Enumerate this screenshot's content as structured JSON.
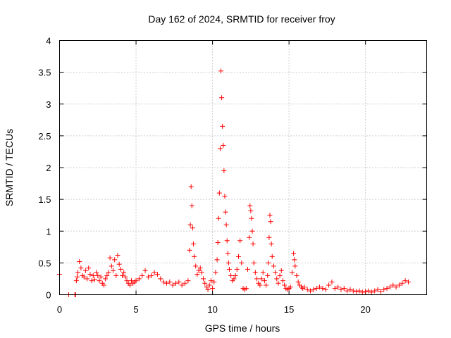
{
  "chart_data": {
    "type": "scatter",
    "title": "Day 162 of 2024, SRMTID for receiver froy",
    "xlabel": "GPS time / hours",
    "ylabel": "SRMTID / TECUs",
    "xlim": [
      0,
      24
    ],
    "ylim": [
      0,
      4
    ],
    "x_ticks": [
      "0",
      "5",
      "10",
      "15",
      "20"
    ],
    "x_tick_values": [
      0,
      5,
      10,
      15,
      20
    ],
    "y_ticks": [
      "0",
      "0.5",
      "1",
      "1.5",
      "2",
      "2.5",
      "3",
      "3.5",
      "4"
    ],
    "y_tick_values": [
      0,
      0.5,
      1,
      1.5,
      2,
      2.5,
      3,
      3.5,
      4
    ],
    "grid": true,
    "marker": "plus",
    "series": [
      {
        "name": "SRMTID",
        "color": "#ff0000",
        "x": [
          0.0,
          0.6,
          1.0,
          1.05,
          1.1,
          1.15,
          1.2,
          1.3,
          1.4,
          1.5,
          1.6,
          1.7,
          1.8,
          1.9,
          2.0,
          2.1,
          2.2,
          2.3,
          2.4,
          2.5,
          2.6,
          2.7,
          2.8,
          2.9,
          3.0,
          3.1,
          3.2,
          3.3,
          3.4,
          3.5,
          3.6,
          3.7,
          3.8,
          3.9,
          4.0,
          4.1,
          4.2,
          4.3,
          4.4,
          4.5,
          4.6,
          4.7,
          4.8,
          4.9,
          5.0,
          5.2,
          5.4,
          5.6,
          5.8,
          6.0,
          6.2,
          6.4,
          6.6,
          6.8,
          7.0,
          7.2,
          7.4,
          7.6,
          7.8,
          8.0,
          8.2,
          8.4,
          8.5,
          8.55,
          8.6,
          8.65,
          8.7,
          8.75,
          8.8,
          8.9,
          9.0,
          9.1,
          9.2,
          9.3,
          9.4,
          9.5,
          9.6,
          9.7,
          9.8,
          9.9,
          10.0,
          10.1,
          10.2,
          10.3,
          10.35,
          10.4,
          10.45,
          10.5,
          10.55,
          10.6,
          10.65,
          10.7,
          10.75,
          10.8,
          10.85,
          10.9,
          10.95,
          11.0,
          11.05,
          11.1,
          11.2,
          11.3,
          11.4,
          11.5,
          11.6,
          11.7,
          11.8,
          11.9,
          12.0,
          12.1,
          12.2,
          12.3,
          12.4,
          12.45,
          12.5,
          12.55,
          12.6,
          12.65,
          12.7,
          12.8,
          12.9,
          13.0,
          13.1,
          13.2,
          13.3,
          13.4,
          13.5,
          13.6,
          13.65,
          13.7,
          13.75,
          13.8,
          13.85,
          13.9,
          14.0,
          14.1,
          14.2,
          14.3,
          14.4,
          14.5,
          14.6,
          14.7,
          14.8,
          14.9,
          15.0,
          15.1,
          15.2,
          15.3,
          15.35,
          15.4,
          15.5,
          15.6,
          15.7,
          15.8,
          15.9,
          16.0,
          16.2,
          16.4,
          16.6,
          16.8,
          17.0,
          17.2,
          17.4,
          17.6,
          17.8,
          18.0,
          18.2,
          18.4,
          18.6,
          18.8,
          19.0,
          19.2,
          19.4,
          19.6,
          19.8,
          20.0,
          20.2,
          20.4,
          20.6,
          20.8,
          21.0,
          21.2,
          21.4,
          21.6,
          21.8,
          22.0,
          22.2,
          22.4,
          22.6,
          22.8
        ],
        "y": [
          0.32,
          0.0,
          0.0,
          0.0,
          0.22,
          0.28,
          0.35,
          0.52,
          0.42,
          0.3,
          0.28,
          0.38,
          0.25,
          0.42,
          0.32,
          0.22,
          0.3,
          0.24,
          0.35,
          0.3,
          0.22,
          0.28,
          0.18,
          0.15,
          0.25,
          0.3,
          0.35,
          0.58,
          0.45,
          0.38,
          0.55,
          0.3,
          0.62,
          0.48,
          0.4,
          0.3,
          0.35,
          0.28,
          0.22,
          0.18,
          0.15,
          0.22,
          0.18,
          0.2,
          0.22,
          0.25,
          0.3,
          0.38,
          0.28,
          0.3,
          0.35,
          0.32,
          0.25,
          0.2,
          0.18,
          0.2,
          0.15,
          0.18,
          0.2,
          0.15,
          0.18,
          0.22,
          0.7,
          1.1,
          1.7,
          1.4,
          1.05,
          0.8,
          0.6,
          0.45,
          0.32,
          0.38,
          0.42,
          0.35,
          0.25,
          0.18,
          0.12,
          0.08,
          0.15,
          0.22,
          0.1,
          0.2,
          0.35,
          0.55,
          0.82,
          1.2,
          1.6,
          2.3,
          3.52,
          3.1,
          2.65,
          2.35,
          1.95,
          1.55,
          1.3,
          1.1,
          0.85,
          0.65,
          0.5,
          0.4,
          0.3,
          0.22,
          0.25,
          0.3,
          0.4,
          0.6,
          0.85,
          0.5,
          0.1,
          0.08,
          0.1,
          0.4,
          0.9,
          1.4,
          1.32,
          1.2,
          1.0,
          0.8,
          0.5,
          0.35,
          0.25,
          0.18,
          0.15,
          0.25,
          0.35,
          0.22,
          0.15,
          0.3,
          0.5,
          0.9,
          1.25,
          1.15,
          0.8,
          0.6,
          0.45,
          0.35,
          0.25,
          0.18,
          0.3,
          0.38,
          0.22,
          0.15,
          0.1,
          0.08,
          0.1,
          0.12,
          0.35,
          0.65,
          0.55,
          0.45,
          0.3,
          0.2,
          0.15,
          0.12,
          0.1,
          0.12,
          0.08,
          0.06,
          0.08,
          0.1,
          0.12,
          0.1,
          0.08,
          0.15,
          0.2,
          0.1,
          0.12,
          0.08,
          0.1,
          0.06,
          0.08,
          0.06,
          0.05,
          0.06,
          0.04,
          0.05,
          0.06,
          0.04,
          0.06,
          0.08,
          0.05,
          0.08,
          0.1,
          0.12,
          0.15,
          0.12,
          0.15,
          0.18,
          0.22,
          0.2
        ]
      }
    ]
  }
}
